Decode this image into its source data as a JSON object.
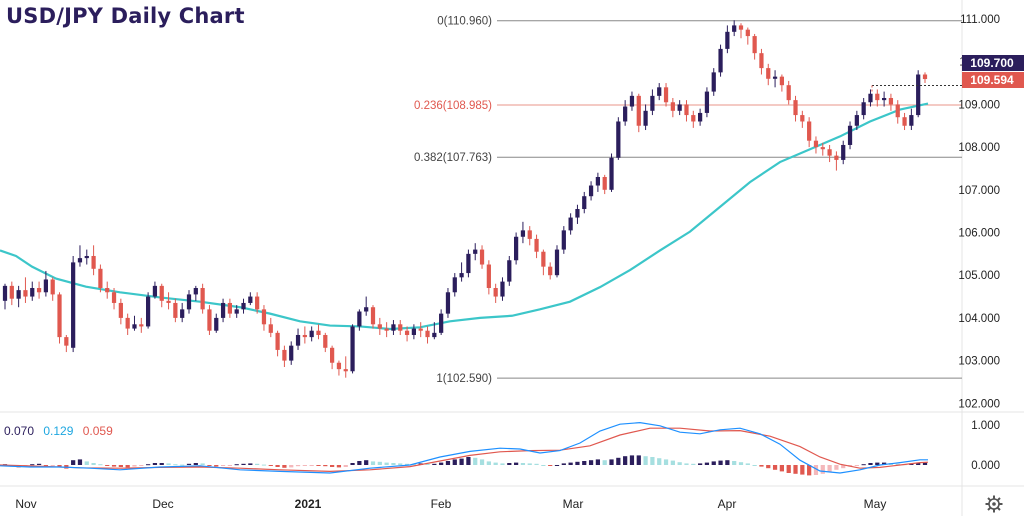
{
  "title": "USD/JPY Daily Chart",
  "macd_legend": {
    "values": [
      "0.070",
      "0.129",
      "0.059"
    ],
    "colors": [
      "#2b1e5c",
      "#1ea7e0",
      "#e0584f"
    ]
  },
  "settings_icon": "gear-icon",
  "colors": {
    "bullish": "#2b1e5c",
    "bearish": "#e0584f",
    "ma": "#3cc6c9",
    "fib_neutral": "#888888",
    "fib_highlight": "#e8968a",
    "macd_line": "#1e90ff",
    "signal_line": "#e0584f",
    "hist_pos_strong": "#2b1e5c",
    "hist_pos_weak": "#a6dfe0",
    "hist_neg_strong": "#e0584f",
    "hist_neg_weak": "#f4b8bb"
  },
  "chart_data": {
    "type": "candlestick",
    "title": "USD/JPY Daily Chart",
    "x_labels": [
      "Nov",
      "Dec",
      "2021",
      "Feb",
      "Mar",
      "Apr",
      "May"
    ],
    "y_ticks": [
      "111.000",
      "110.000",
      "109.000",
      "108.000",
      "107.000",
      "106.000",
      "105.000",
      "104.000",
      "103.000",
      "102.000"
    ],
    "ylim": [
      101.7,
      111.4
    ],
    "price_labels": [
      {
        "text": "109.700",
        "value": 109.7,
        "color": "#2b1e5c"
      },
      {
        "text": "109.594",
        "value": 109.594,
        "color": "#e0584f"
      }
    ],
    "fib_levels": [
      {
        "label": "0(110.960)",
        "value": 110.96,
        "highlight": false
      },
      {
        "label": "0.236(108.985)",
        "value": 108.985,
        "highlight": true
      },
      {
        "label": "0.382(107.763)",
        "value": 107.763,
        "highlight": false
      },
      {
        "label": "1(102.590)",
        "value": 102.59,
        "highlight": false
      }
    ],
    "moving_average": [
      [
        0,
        105.58
      ],
      [
        16,
        105.45
      ],
      [
        32,
        105.2
      ],
      [
        56,
        104.92
      ],
      [
        86,
        104.73
      ],
      [
        120,
        104.6
      ],
      [
        160,
        104.48
      ],
      [
        200,
        104.38
      ],
      [
        240,
        104.25
      ],
      [
        270,
        104.1
      ],
      [
        300,
        103.92
      ],
      [
        330,
        103.82
      ],
      [
        360,
        103.8
      ],
      [
        390,
        103.74
      ],
      [
        420,
        103.78
      ],
      [
        450,
        103.92
      ],
      [
        480,
        104.0
      ],
      [
        512,
        104.05
      ],
      [
        540,
        104.2
      ],
      [
        570,
        104.38
      ],
      [
        600,
        104.72
      ],
      [
        630,
        105.12
      ],
      [
        660,
        105.58
      ],
      [
        690,
        106.02
      ],
      [
        720,
        106.6
      ],
      [
        750,
        107.18
      ],
      [
        780,
        107.65
      ],
      [
        810,
        107.95
      ],
      [
        840,
        108.25
      ],
      [
        870,
        108.6
      ],
      [
        900,
        108.88
      ],
      [
        928,
        109.02
      ]
    ],
    "candles": [
      [
        104.4,
        104.75,
        104.8,
        104.2
      ],
      [
        104.75,
        104.45,
        104.85,
        104.3
      ],
      [
        104.45,
        104.65,
        104.75,
        104.25
      ],
      [
        104.65,
        104.5,
        104.95,
        104.35
      ],
      [
        104.5,
        104.7,
        104.85,
        104.4
      ],
      [
        104.7,
        104.6,
        104.85,
        104.45
      ],
      [
        104.6,
        104.9,
        105.1,
        104.5
      ],
      [
        104.9,
        104.55,
        104.95,
        104.4
      ],
      [
        104.55,
        103.55,
        104.6,
        103.4
      ],
      [
        103.55,
        103.35,
        103.6,
        103.2
      ],
      [
        103.3,
        105.3,
        105.45,
        103.2
      ],
      [
        105.3,
        105.4,
        105.7,
        105.2
      ],
      [
        105.4,
        105.45,
        105.6,
        105.25
      ],
      [
        105.45,
        105.15,
        105.7,
        105.0
      ],
      [
        105.15,
        104.7,
        105.25,
        104.6
      ],
      [
        104.7,
        104.6,
        104.85,
        104.45
      ],
      [
        104.6,
        104.35,
        104.7,
        104.2
      ],
      [
        104.35,
        104.0,
        104.45,
        103.85
      ],
      [
        104.0,
        103.75,
        104.1,
        103.6
      ],
      [
        103.75,
        103.85,
        104.05,
        103.7
      ],
      [
        103.85,
        103.8,
        104.0,
        103.65
      ],
      [
        103.8,
        104.5,
        104.6,
        103.75
      ],
      [
        104.5,
        104.75,
        104.85,
        104.45
      ],
      [
        104.75,
        104.4,
        104.8,
        104.25
      ],
      [
        104.4,
        104.35,
        104.6,
        104.2
      ],
      [
        104.35,
        104.0,
        104.45,
        103.9
      ],
      [
        104.0,
        104.2,
        104.35,
        103.9
      ],
      [
        104.2,
        104.55,
        104.65,
        104.1
      ],
      [
        104.55,
        104.7,
        104.75,
        104.4
      ],
      [
        104.7,
        104.2,
        104.8,
        104.1
      ],
      [
        104.2,
        103.7,
        104.3,
        103.6
      ],
      [
        103.7,
        104.0,
        104.1,
        103.65
      ],
      [
        104.0,
        104.35,
        104.45,
        103.9
      ],
      [
        104.35,
        104.1,
        104.45,
        104.0
      ],
      [
        104.1,
        104.2,
        104.3,
        104.0
      ],
      [
        104.2,
        104.35,
        104.45,
        104.1
      ],
      [
        104.35,
        104.5,
        104.6,
        104.3
      ],
      [
        104.5,
        104.2,
        104.6,
        104.1
      ],
      [
        104.2,
        103.85,
        104.3,
        103.7
      ],
      [
        103.85,
        103.65,
        104.0,
        103.55
      ],
      [
        103.65,
        103.25,
        103.7,
        103.1
      ],
      [
        103.25,
        103.0,
        103.35,
        102.85
      ],
      [
        103.0,
        103.35,
        103.45,
        102.9
      ],
      [
        103.35,
        103.6,
        103.75,
        103.25
      ],
      [
        103.6,
        103.55,
        103.8,
        103.4
      ],
      [
        103.55,
        103.7,
        103.8,
        103.45
      ],
      [
        103.7,
        103.6,
        103.85,
        103.5
      ],
      [
        103.6,
        103.3,
        103.65,
        103.2
      ],
      [
        103.3,
        102.95,
        103.35,
        102.8
      ],
      [
        102.95,
        102.8,
        103.0,
        102.65
      ],
      [
        102.8,
        102.75,
        103.1,
        102.6
      ],
      [
        102.75,
        103.8,
        103.85,
        102.7
      ],
      [
        103.8,
        104.15,
        104.2,
        103.7
      ],
      [
        104.15,
        104.25,
        104.5,
        104.05
      ],
      [
        104.25,
        103.85,
        104.3,
        103.75
      ],
      [
        103.85,
        103.75,
        104.0,
        103.6
      ],
      [
        103.75,
        103.7,
        103.9,
        103.55
      ],
      [
        103.7,
        103.85,
        103.95,
        103.6
      ],
      [
        103.85,
        103.7,
        103.95,
        103.6
      ],
      [
        103.7,
        103.6,
        103.8,
        103.45
      ],
      [
        103.6,
        103.75,
        103.85,
        103.5
      ],
      [
        103.75,
        103.7,
        103.9,
        103.55
      ],
      [
        103.7,
        103.55,
        103.8,
        103.4
      ],
      [
        103.55,
        103.65,
        103.9,
        103.5
      ],
      [
        103.65,
        104.1,
        104.2,
        103.6
      ],
      [
        104.1,
        104.6,
        104.7,
        104.0
      ],
      [
        104.6,
        104.95,
        105.05,
        104.5
      ],
      [
        104.95,
        105.05,
        105.3,
        104.85
      ],
      [
        105.05,
        105.5,
        105.6,
        104.95
      ],
      [
        105.5,
        105.6,
        105.75,
        105.35
      ],
      [
        105.6,
        105.25,
        105.7,
        105.15
      ],
      [
        105.25,
        104.7,
        105.35,
        104.55
      ],
      [
        104.7,
        104.5,
        104.8,
        104.35
      ],
      [
        104.5,
        104.85,
        104.95,
        104.4
      ],
      [
        104.85,
        105.35,
        105.45,
        104.75
      ],
      [
        105.35,
        105.9,
        106.0,
        105.25
      ],
      [
        105.9,
        106.05,
        106.25,
        105.75
      ],
      [
        106.05,
        105.85,
        106.15,
        105.7
      ],
      [
        105.85,
        105.55,
        105.95,
        105.4
      ],
      [
        105.55,
        105.2,
        105.6,
        105.0
      ],
      [
        105.2,
        105.0,
        105.3,
        104.9
      ],
      [
        105.0,
        105.6,
        105.7,
        104.95
      ],
      [
        105.6,
        106.05,
        106.15,
        105.5
      ],
      [
        106.05,
        106.35,
        106.45,
        105.95
      ],
      [
        106.35,
        106.55,
        106.65,
        106.2
      ],
      [
        106.55,
        106.85,
        106.95,
        106.45
      ],
      [
        106.85,
        107.1,
        107.2,
        106.75
      ],
      [
        107.1,
        107.3,
        107.4,
        106.95
      ],
      [
        107.3,
        107.0,
        107.35,
        106.9
      ],
      [
        107.0,
        107.75,
        107.85,
        106.95
      ],
      [
        107.75,
        108.6,
        108.7,
        107.7
      ],
      [
        108.6,
        108.95,
        109.1,
        108.5
      ],
      [
        108.95,
        109.2,
        109.3,
        108.85
      ],
      [
        109.2,
        108.5,
        109.25,
        108.35
      ],
      [
        108.5,
        108.85,
        109.0,
        108.4
      ],
      [
        108.85,
        109.2,
        109.35,
        108.75
      ],
      [
        109.2,
        109.4,
        109.5,
        109.1
      ],
      [
        109.4,
        109.05,
        109.5,
        108.95
      ],
      [
        109.05,
        108.85,
        109.15,
        108.7
      ],
      [
        108.85,
        109.0,
        109.1,
        108.75
      ],
      [
        109.0,
        108.75,
        109.1,
        108.6
      ],
      [
        108.75,
        108.6,
        108.85,
        108.45
      ],
      [
        108.6,
        108.8,
        108.9,
        108.5
      ],
      [
        108.8,
        109.3,
        109.4,
        108.7
      ],
      [
        109.3,
        109.75,
        109.85,
        109.2
      ],
      [
        109.75,
        110.3,
        110.4,
        109.65
      ],
      [
        110.3,
        110.7,
        110.85,
        110.2
      ],
      [
        110.7,
        110.85,
        110.97,
        110.6
      ],
      [
        110.85,
        110.75,
        110.9,
        110.55
      ],
      [
        110.75,
        110.6,
        110.8,
        110.4
      ],
      [
        110.6,
        110.2,
        110.65,
        110.05
      ],
      [
        110.2,
        109.85,
        110.3,
        109.7
      ],
      [
        109.85,
        109.6,
        109.95,
        109.45
      ],
      [
        109.6,
        109.65,
        109.8,
        109.4
      ],
      [
        109.65,
        109.45,
        109.7,
        109.3
      ],
      [
        109.45,
        109.1,
        109.55,
        109.0
      ],
      [
        109.1,
        108.75,
        109.2,
        108.6
      ],
      [
        108.75,
        108.6,
        108.85,
        108.45
      ],
      [
        108.6,
        108.15,
        108.7,
        108.0
      ],
      [
        108.15,
        108.0,
        108.25,
        107.85
      ],
      [
        108.0,
        107.95,
        108.1,
        107.8
      ],
      [
        107.95,
        107.8,
        108.05,
        107.65
      ],
      [
        107.8,
        107.7,
        107.9,
        107.45
      ],
      [
        107.7,
        108.05,
        108.15,
        107.6
      ],
      [
        108.05,
        108.5,
        108.6,
        107.95
      ],
      [
        108.5,
        108.75,
        108.85,
        108.4
      ],
      [
        108.75,
        109.05,
        109.15,
        108.65
      ],
      [
        109.05,
        109.25,
        109.35,
        108.95
      ],
      [
        109.25,
        109.1,
        109.35,
        108.95
      ],
      [
        109.1,
        109.15,
        109.3,
        108.95
      ],
      [
        109.15,
        109.0,
        109.25,
        108.85
      ],
      [
        109.0,
        108.7,
        109.1,
        108.55
      ],
      [
        108.7,
        108.5,
        108.8,
        108.4
      ],
      [
        108.5,
        108.75,
        108.9,
        108.4
      ],
      [
        108.75,
        109.7,
        109.8,
        108.7
      ],
      [
        109.7,
        109.594,
        109.75,
        109.5
      ]
    ],
    "macd": {
      "ylim": [
        -0.35,
        1.15
      ],
      "y_ticks": [
        "1.000",
        "0.000"
      ],
      "macd_line": [
        [
          0,
          -0.02
        ],
        [
          30,
          -0.05
        ],
        [
          60,
          -0.05
        ],
        [
          90,
          -0.08
        ],
        [
          120,
          -0.12
        ],
        [
          160,
          -0.05
        ],
        [
          200,
          -0.02
        ],
        [
          240,
          -0.12
        ],
        [
          280,
          -0.16
        ],
        [
          330,
          -0.2
        ],
        [
          370,
          -0.08
        ],
        [
          410,
          0.0
        ],
        [
          440,
          0.2
        ],
        [
          470,
          0.34
        ],
        [
          500,
          0.42
        ],
        [
          520,
          0.4
        ],
        [
          540,
          0.3
        ],
        [
          560,
          0.36
        ],
        [
          580,
          0.55
        ],
        [
          600,
          0.85
        ],
        [
          620,
          1.02
        ],
        [
          640,
          1.06
        ],
        [
          660,
          0.98
        ],
        [
          680,
          0.82
        ],
        [
          700,
          0.78
        ],
        [
          720,
          0.88
        ],
        [
          740,
          0.92
        ],
        [
          760,
          0.78
        ],
        [
          780,
          0.52
        ],
        [
          800,
          0.12
        ],
        [
          820,
          -0.15
        ],
        [
          840,
          -0.2
        ],
        [
          860,
          -0.12
        ],
        [
          880,
          0.0
        ],
        [
          900,
          0.06
        ],
        [
          920,
          0.13
        ],
        [
          928,
          0.13
        ]
      ],
      "signal_line": [
        [
          0,
          0.0
        ],
        [
          40,
          -0.03
        ],
        [
          80,
          -0.07
        ],
        [
          120,
          -0.08
        ],
        [
          160,
          -0.06
        ],
        [
          200,
          -0.05
        ],
        [
          240,
          -0.08
        ],
        [
          280,
          -0.12
        ],
        [
          330,
          -0.16
        ],
        [
          370,
          -0.12
        ],
        [
          410,
          -0.04
        ],
        [
          440,
          0.1
        ],
        [
          470,
          0.24
        ],
        [
          500,
          0.33
        ],
        [
          530,
          0.36
        ],
        [
          560,
          0.37
        ],
        [
          590,
          0.48
        ],
        [
          620,
          0.75
        ],
        [
          650,
          0.92
        ],
        [
          680,
          0.92
        ],
        [
          710,
          0.85
        ],
        [
          740,
          0.86
        ],
        [
          770,
          0.72
        ],
        [
          800,
          0.46
        ],
        [
          820,
          0.2
        ],
        [
          840,
          0.02
        ],
        [
          860,
          -0.08
        ],
        [
          880,
          -0.06
        ],
        [
          900,
          0.0
        ],
        [
          920,
          0.06
        ],
        [
          928,
          0.07
        ]
      ],
      "histogram": [
        0.02,
        -0.04,
        -0.06,
        -0.05,
        0.02,
        0.03,
        -0.04,
        -0.03,
        -0.06,
        -0.09,
        0.12,
        0.14,
        0.09,
        0.05,
        0.02,
        -0.02,
        -0.04,
        -0.05,
        -0.06,
        -0.04,
        -0.02,
        0.02,
        0.05,
        0.05,
        0.04,
        0.02,
        0.01,
        0.03,
        0.05,
        0.04,
        -0.02,
        -0.04,
        -0.02,
        -0.01,
        0.02,
        0.03,
        0.04,
        0.03,
        0.01,
        -0.02,
        -0.05,
        -0.07,
        -0.06,
        -0.03,
        -0.02,
        -0.01,
        -0.01,
        -0.03,
        -0.05,
        -0.06,
        -0.05,
        0.05,
        0.1,
        0.12,
        0.09,
        0.08,
        0.06,
        0.05,
        0.04,
        0.03,
        0.02,
        0.04,
        0.03,
        0.03,
        0.06,
        0.1,
        0.14,
        0.16,
        0.2,
        0.18,
        0.14,
        0.09,
        0.06,
        0.04,
        0.05,
        0.06,
        0.05,
        0.04,
        0.03,
        0.0,
        -0.02,
        0.0,
        0.04,
        0.06,
        0.08,
        0.1,
        0.12,
        0.14,
        0.12,
        0.14,
        0.18,
        0.22,
        0.24,
        0.24,
        0.22,
        0.2,
        0.17,
        0.14,
        0.11,
        0.07,
        0.04,
        0.03,
        0.04,
        0.06,
        0.09,
        0.11,
        0.12,
        0.1,
        0.07,
        0.04,
        0.0,
        -0.04,
        -0.08,
        -0.12,
        -0.16,
        -0.2,
        -0.22,
        -0.24,
        -0.26,
        -0.25,
        -0.22,
        -0.18,
        -0.12,
        -0.08,
        -0.04,
        -0.02,
        0.02,
        0.05,
        0.06,
        0.06,
        0.05,
        0.03,
        0.02,
        0.04,
        0.06,
        0.06
      ]
    }
  }
}
